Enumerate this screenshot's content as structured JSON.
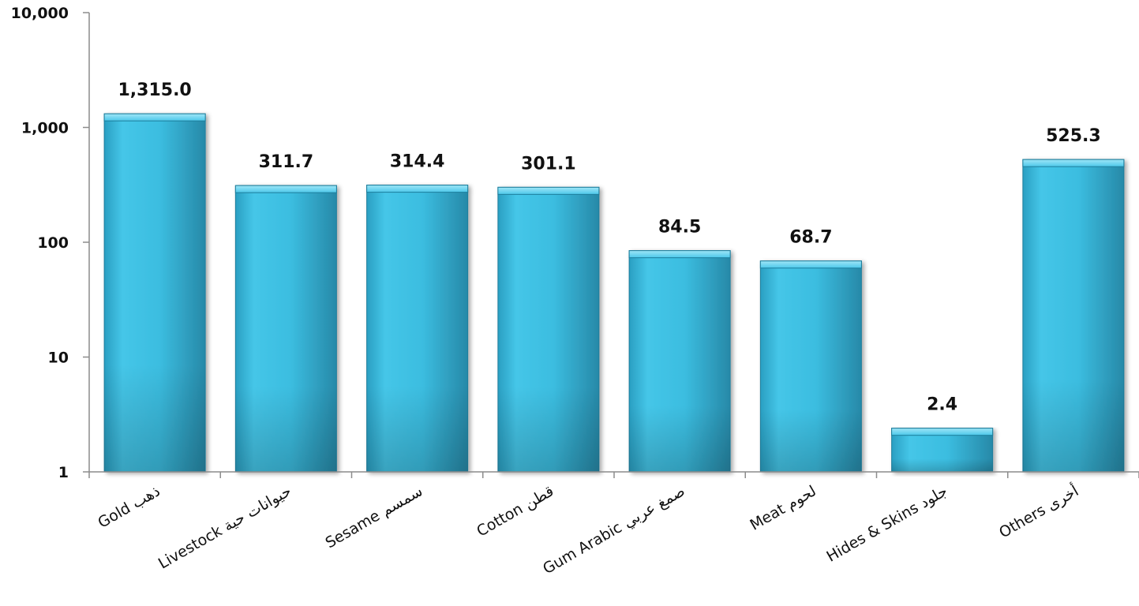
{
  "chart_data": {
    "type": "bar",
    "y_scale": "log",
    "ylim": [
      1,
      10000
    ],
    "y_ticks": [
      "1",
      "10",
      "100",
      "1,000",
      "10,000"
    ],
    "grid": false,
    "legend": "none",
    "bar_color": "#3BBEE0",
    "categories": [
      "Gold ذهب",
      "Livestock حيوانات حية",
      "Sesame سمسم",
      "Cotton  قطن",
      "Gum Arabic صمغ عربي",
      "Meat لحوم",
      "Hides & Skins جلود",
      "Others أخرى"
    ],
    "values": [
      1315.0,
      311.7,
      314.4,
      301.1,
      84.5,
      68.7,
      2.4,
      525.3
    ],
    "data_labels": [
      "1,315.0",
      "311.7",
      "314.4",
      "301.1",
      "84.5",
      "68.7",
      "2.4",
      "525.3"
    ]
  }
}
